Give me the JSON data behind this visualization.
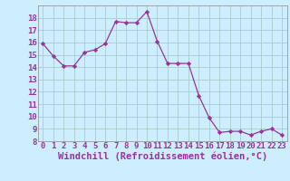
{
  "x": [
    0,
    1,
    2,
    3,
    4,
    5,
    6,
    7,
    8,
    9,
    10,
    11,
    12,
    13,
    14,
    15,
    16,
    17,
    18,
    19,
    20,
    21,
    22,
    23
  ],
  "y": [
    15.9,
    14.9,
    14.1,
    14.1,
    15.2,
    15.4,
    15.9,
    17.7,
    17.6,
    17.6,
    18.5,
    16.1,
    14.3,
    14.3,
    14.3,
    11.7,
    9.9,
    8.7,
    8.8,
    8.8,
    8.5,
    8.8,
    9.0,
    8.5
  ],
  "xlim": [
    -0.5,
    23.5
  ],
  "ylim": [
    8,
    19
  ],
  "yticks": [
    8,
    9,
    10,
    11,
    12,
    13,
    14,
    15,
    16,
    17,
    18
  ],
  "xticks": [
    0,
    1,
    2,
    3,
    4,
    5,
    6,
    7,
    8,
    9,
    10,
    11,
    12,
    13,
    14,
    15,
    16,
    17,
    18,
    19,
    20,
    21,
    22,
    23
  ],
  "line_color": "#993399",
  "marker_color": "#993399",
  "bg_color": "#cceeff",
  "grid_color": "#aacccc",
  "xlabel": "Windchill (Refroidissement éolien,°C)",
  "xlabel_color": "#993399",
  "tick_color": "#993399",
  "tick_fontsize": 6.5,
  "xlabel_fontsize": 7.5
}
